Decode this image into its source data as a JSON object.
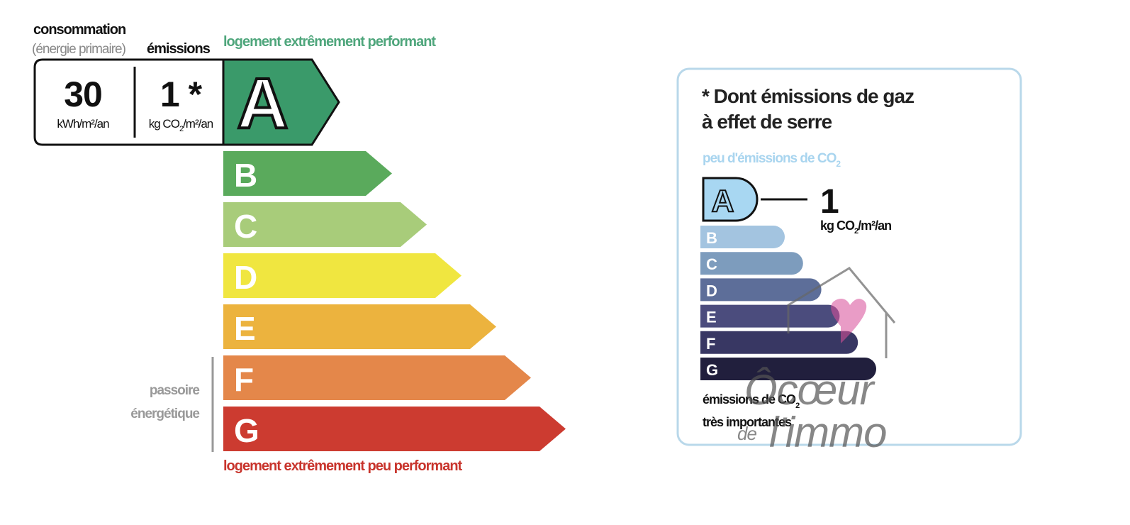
{
  "energy_label": {
    "header": {
      "consumption": "consommation",
      "consumption_note": "(énergie primaire)",
      "emissions": "émissions",
      "top_caption": "logement extrêmement performant"
    },
    "consumption": {
      "value": "30",
      "unit": "kWh/m²/an"
    },
    "emissions": {
      "value": "1 *",
      "unit": [
        "kg CO",
        "2",
        "/m²/an"
      ]
    },
    "classes": [
      "A",
      "B",
      "C",
      "D",
      "E",
      "F",
      "G"
    ],
    "passoire": [
      "passoire",
      "énergétique"
    ],
    "bottom_caption": "logement extrêmement peu performant"
  },
  "ghg_panel": {
    "title": [
      "* Dont émissions de gaz",
      "à effet de serre"
    ],
    "top_caption": [
      "peu d'émissions de CO",
      "2"
    ],
    "classes": [
      "A",
      "B",
      "C",
      "D",
      "E",
      "F",
      "G"
    ],
    "value": "1",
    "unit": [
      "kg CO",
      "2",
      "/m²/an"
    ],
    "bottom_caption": [
      "émissions de CO",
      "2",
      "très importantes"
    ]
  },
  "watermark": [
    "Ôcœur",
    "de",
    "l'immo"
  ]
}
